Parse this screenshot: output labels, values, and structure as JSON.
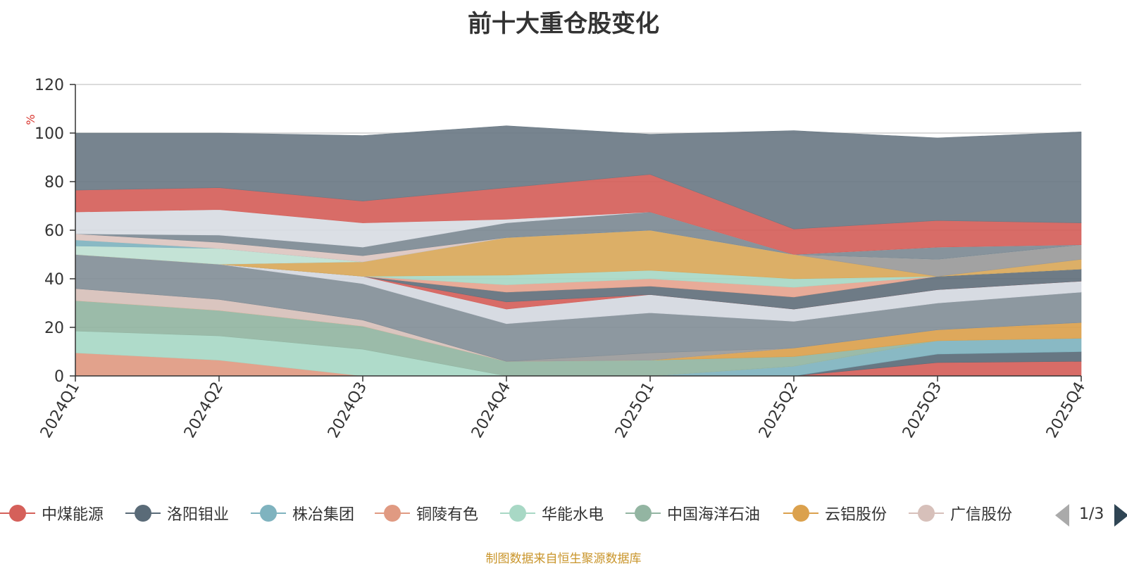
{
  "title": "前十大重仓股变化",
  "source_note": "制图数据来自恒生聚源数据库",
  "legend_pager": "1/3",
  "chart_data": {
    "type": "area",
    "stacked": true,
    "title": "前十大重仓股变化",
    "ylabel": "%",
    "ylim": [
      0,
      120
    ],
    "yticks": [
      "0",
      "20",
      "40",
      "60",
      "80",
      "100",
      "120"
    ],
    "grid": true,
    "legend_position": "bottom",
    "categories": [
      "2024Q1",
      "2024Q2",
      "2024Q3",
      "2024Q4",
      "2025Q1",
      "2025Q2",
      "2025Q3",
      "2025Q4"
    ],
    "series": [
      {
        "name": "中煤能源",
        "color": "#d5605a",
        "values": [
          0,
          0,
          0,
          0,
          0,
          0,
          5.5,
          6
        ]
      },
      {
        "name": "洛阳钼业",
        "color": "#5a6b78",
        "values": [
          0,
          0,
          0,
          0,
          0,
          0,
          3.5,
          4
        ]
      },
      {
        "name": "株冶集团",
        "color": "#7fb3bf",
        "values": [
          0,
          0,
          0,
          0,
          0,
          4,
          5.5,
          5.5
        ]
      },
      {
        "name": "铜陵有色",
        "color": "#e09a82",
        "values": [
          9.5,
          6.5,
          0,
          0,
          0,
          0,
          0,
          0
        ]
      },
      {
        "name": "华能水电",
        "color": "#a8d8c5",
        "values": [
          9,
          10,
          11,
          0,
          0,
          0,
          0,
          0
        ]
      },
      {
        "name": "中国海洋石油",
        "color": "#93b5a2",
        "values": [
          12.5,
          10.5,
          9.5,
          6,
          6.5,
          4,
          0,
          0
        ]
      },
      {
        "name": "云铝股份",
        "color": "#dba14d",
        "values": [
          0,
          0,
          0,
          0,
          0,
          3.5,
          4.5,
          6.5
        ]
      },
      {
        "name": "广信股份",
        "color": "#d7c0ba",
        "values": [
          5,
          4.5,
          2.5,
          0,
          0,
          0,
          0,
          0
        ]
      },
      {
        "name": "",
        "color": "#9a9a9a",
        "values": [
          0,
          0,
          0,
          0,
          3,
          0,
          0,
          0
        ]
      },
      {
        "name": "",
        "color": "#838f98",
        "values": [
          14,
          14.5,
          15,
          15.5,
          16.5,
          11,
          11,
          12.5
        ]
      },
      {
        "name": "",
        "color": "#d4d8e0",
        "values": [
          0,
          0,
          3,
          6,
          7.5,
          5,
          5.5,
          4.5
        ]
      },
      {
        "name": "",
        "color": "#d5605a",
        "values": [
          0,
          0,
          0,
          3,
          0,
          0,
          0,
          0
        ]
      },
      {
        "name": "",
        "color": "#62707c",
        "values": [
          0,
          0,
          0,
          4,
          3.5,
          5,
          5.5,
          5
        ]
      },
      {
        "name": "",
        "color": "#e6a48f",
        "values": [
          0,
          0,
          0,
          3,
          3,
          4,
          0,
          0
        ]
      },
      {
        "name": "",
        "color": "#a8d8c5",
        "values": [
          0,
          0,
          0,
          4,
          3.5,
          3.5,
          0,
          0
        ]
      },
      {
        "name": "",
        "color": "#d9a85a",
        "values": [
          0,
          0,
          6,
          15.5,
          16.5,
          10,
          0,
          4
        ]
      },
      {
        "name": "",
        "color": "#9a9a9a",
        "values": [
          0,
          0,
          0,
          0,
          0,
          0,
          7,
          6
        ]
      },
      {
        "name": "",
        "color": "#bfe1d3",
        "values": [
          3.5,
          6.5,
          0,
          0,
          0,
          0,
          0,
          0
        ]
      },
      {
        "name": "",
        "color": "#7fb3bf",
        "values": [
          2.5,
          0,
          0,
          0,
          0,
          0,
          0,
          0
        ]
      },
      {
        "name": "",
        "color": "#dcc6c0",
        "values": [
          2.5,
          2.5,
          2.5,
          0,
          0,
          0,
          0,
          0
        ]
      },
      {
        "name": "",
        "color": "#7d8a94",
        "values": [
          0,
          3,
          3.5,
          6,
          7.5,
          0,
          5,
          0
        ]
      },
      {
        "name": "",
        "color": "#d8dce3",
        "values": [
          9,
          10.5,
          10,
          1.5,
          0,
          0,
          0,
          0
        ]
      },
      {
        "name": "",
        "color": "#d5605a",
        "values": [
          9,
          9,
          9,
          13,
          15.5,
          10.5,
          11,
          9
        ]
      },
      {
        "name": "",
        "color": "#6b7a85",
        "values": [
          23.5,
          22.5,
          27,
          25.5,
          16.5,
          40.5,
          34,
          37.5
        ]
      }
    ]
  }
}
